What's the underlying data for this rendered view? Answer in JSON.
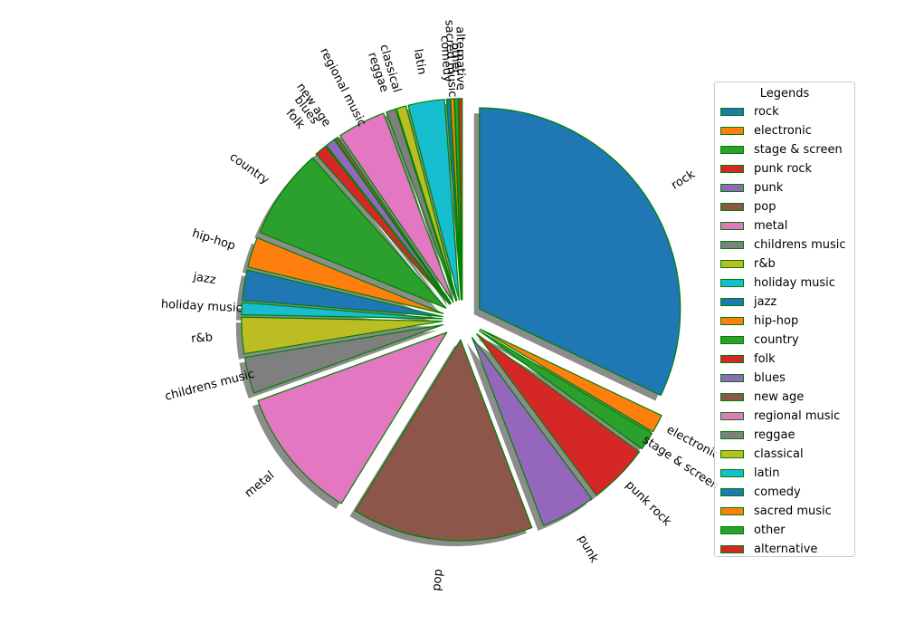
{
  "chart_data": {
    "type": "pie",
    "title": "",
    "legend_title": "Legends",
    "legend_placement": "right",
    "edge_color": "#008000",
    "shadow": true,
    "slices": [
      {
        "label": "rock",
        "value": 33.0,
        "color": "#1f77b4"
      },
      {
        "label": "electronic",
        "value": 1.5,
        "color": "#ff7f0e"
      },
      {
        "label": "stage & screen",
        "value": 1.5,
        "color": "#2ca02c"
      },
      {
        "label": "punk rock",
        "value": 5.0,
        "color": "#d62728"
      },
      {
        "label": "punk",
        "value": 4.5,
        "color": "#9467bd"
      },
      {
        "label": "pop",
        "value": 15.0,
        "color": "#8c564b"
      },
      {
        "label": "metal",
        "value": 11.0,
        "color": "#e377c2"
      },
      {
        "label": "childrens music",
        "value": 3.0,
        "color": "#7f7f7f"
      },
      {
        "label": "r&b",
        "value": 3.0,
        "color": "#bcbd22"
      },
      {
        "label": "holiday music",
        "value": 1.0,
        "color": "#17becf"
      },
      {
        "label": "jazz",
        "value": 2.5,
        "color": "#1f77b4"
      },
      {
        "label": "hip-hop",
        "value": 2.5,
        "color": "#ff7f0e"
      },
      {
        "label": "country",
        "value": 7.5,
        "color": "#2ca02c"
      },
      {
        "label": "folk",
        "value": 1.0,
        "color": "#d62728"
      },
      {
        "label": "blues",
        "value": 0.8,
        "color": "#9467bd"
      },
      {
        "label": "new age",
        "value": 0.3,
        "color": "#8c564b"
      },
      {
        "label": "regional music",
        "value": 4.0,
        "color": "#e377c2"
      },
      {
        "label": "reggae",
        "value": 0.8,
        "color": "#7f7f7f"
      },
      {
        "label": "classical",
        "value": 0.8,
        "color": "#bcbd22"
      },
      {
        "label": "latin",
        "value": 3.0,
        "color": "#17becf"
      },
      {
        "label": "comedy",
        "value": 0.3,
        "color": "#1f77b4"
      },
      {
        "label": "sacred music",
        "value": 0.3,
        "color": "#ff7f0e"
      },
      {
        "label": "other",
        "value": 0.3,
        "color": "#2ca02c"
      },
      {
        "label": "alternative",
        "value": 0.3,
        "color": "#d62728"
      }
    ]
  }
}
